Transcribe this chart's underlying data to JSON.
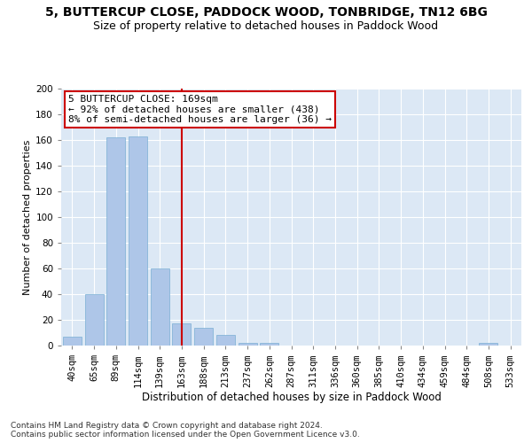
{
  "title": "5, BUTTERCUP CLOSE, PADDOCK WOOD, TONBRIDGE, TN12 6BG",
  "subtitle": "Size of property relative to detached houses in Paddock Wood",
  "xlabel": "Distribution of detached houses by size in Paddock Wood",
  "ylabel": "Number of detached properties",
  "categories": [
    "40sqm",
    "65sqm",
    "89sqm",
    "114sqm",
    "139sqm",
    "163sqm",
    "188sqm",
    "213sqm",
    "237sqm",
    "262sqm",
    "287sqm",
    "311sqm",
    "336sqm",
    "360sqm",
    "385sqm",
    "410sqm",
    "434sqm",
    "459sqm",
    "484sqm",
    "508sqm",
    "533sqm"
  ],
  "values": [
    7,
    40,
    162,
    163,
    60,
    17,
    14,
    8,
    2,
    2,
    0,
    0,
    0,
    0,
    0,
    0,
    0,
    0,
    0,
    2,
    0
  ],
  "bar_color": "#aec6e8",
  "bar_edge_color": "#7aafd4",
  "vline_index": 5,
  "vline_color": "#cc0000",
  "annotation_text": "5 BUTTERCUP CLOSE: 169sqm\n← 92% of detached houses are smaller (438)\n8% of semi-detached houses are larger (36) →",
  "annotation_box_color": "#ffffff",
  "annotation_box_edge_color": "#cc0000",
  "bg_color": "#dce8f5",
  "grid_color": "#ffffff",
  "ylim": [
    0,
    200
  ],
  "yticks": [
    0,
    20,
    40,
    60,
    80,
    100,
    120,
    140,
    160,
    180,
    200
  ],
  "footnote": "Contains HM Land Registry data © Crown copyright and database right 2024.\nContains public sector information licensed under the Open Government Licence v3.0.",
  "title_fontsize": 10,
  "subtitle_fontsize": 9,
  "xlabel_fontsize": 8.5,
  "ylabel_fontsize": 8,
  "tick_fontsize": 7.5,
  "annotation_fontsize": 8,
  "footnote_fontsize": 6.5
}
